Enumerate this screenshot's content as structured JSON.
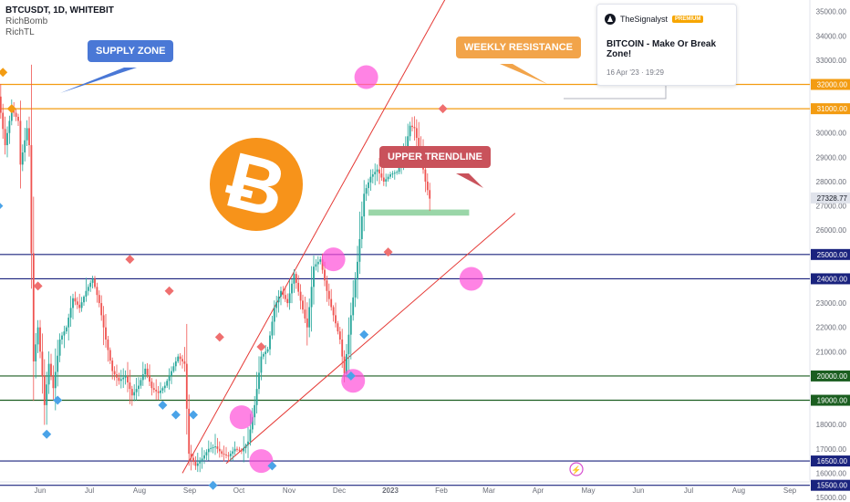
{
  "header": {
    "symbol": "BTCUSDT, 1D, WHITEBIT",
    "indicators": [
      "RichBomb",
      "RichTL"
    ]
  },
  "callouts": {
    "supply": "SUPPLY ZONE",
    "weekly": "WEEKLY RESISTANCE",
    "trend": "UPPER TRENDLINE"
  },
  "idea_card": {
    "author": "TheSignalyst",
    "badge": "PREMIUM",
    "title": "BITCOIN - Make Or Break Zone!",
    "timestamp": "16 Apr '23 · 19:29"
  },
  "colors": {
    "up": "#26a69a",
    "down": "#ef5350",
    "orange_level": "#f39c12",
    "blue_level": "#1a237e",
    "green_level": "#1b5e20",
    "bitcoin_orange": "#f7931a",
    "highlight": "#ff4fd8"
  },
  "chart_data": {
    "type": "candlestick",
    "symbol": "BTCUSDT",
    "timeframe": "1D",
    "exchange": "WHITEBIT",
    "x_ticks": [
      "Jun",
      "Jul",
      "Aug",
      "Sep",
      "Oct",
      "Nov",
      "Dec",
      "2023",
      "Feb",
      "Mar",
      "Apr",
      "May",
      "Jun",
      "Jul",
      "Aug",
      "Sep"
    ],
    "y_ticks": [
      15000,
      16000,
      17000,
      18000,
      19000,
      20000,
      21000,
      22000,
      23000,
      24000,
      25000,
      26000,
      27000,
      28000,
      29000,
      30000,
      31000,
      32000,
      33000,
      34000,
      35000
    ],
    "ylim": [
      14850,
      35250
    ],
    "current_price": "27328.77",
    "levels": [
      {
        "value": 32000,
        "label": "32000.00",
        "color": "orange"
      },
      {
        "value": 31000,
        "label": "31000.00",
        "color": "orange"
      },
      {
        "value": 25000,
        "label": "25000.00",
        "color": "navy"
      },
      {
        "value": 24000,
        "label": "24000.00",
        "color": "navy"
      },
      {
        "value": 20000,
        "label": "20000.00",
        "color": "green"
      },
      {
        "value": 19000,
        "label": "19000.00",
        "color": "green"
      },
      {
        "value": 16500,
        "label": "16500.00",
        "color": "navy"
      },
      {
        "value": 15500,
        "label": "15500.00",
        "color": "navy"
      }
    ],
    "price_path": [
      [
        -3,
        31500
      ],
      [
        0,
        29500
      ],
      [
        3,
        31000
      ],
      [
        6,
        30500
      ],
      [
        7,
        28700
      ],
      [
        10,
        30200
      ],
      [
        11,
        29500
      ],
      [
        13,
        20600
      ],
      [
        15,
        22000
      ],
      [
        17,
        20000
      ],
      [
        18,
        18800
      ],
      [
        20,
        20500
      ],
      [
        22,
        19500
      ],
      [
        25,
        21500
      ],
      [
        28,
        22000
      ],
      [
        31,
        23200
      ],
      [
        34,
        22800
      ],
      [
        37,
        23500
      ],
      [
        40,
        24000
      ],
      [
        43,
        23000
      ],
      [
        46,
        21500
      ],
      [
        49,
        20200
      ],
      [
        52,
        19800
      ],
      [
        55,
        20000
      ],
      [
        58,
        19200
      ],
      [
        61,
        19600
      ],
      [
        64,
        20300
      ],
      [
        67,
        19500
      ],
      [
        70,
        19300
      ],
      [
        73,
        19600
      ],
      [
        76,
        20200
      ],
      [
        79,
        20800
      ],
      [
        82,
        20500
      ],
      [
        84,
        16800
      ],
      [
        87,
        16300
      ],
      [
        90,
        16600
      ],
      [
        93,
        17000
      ],
      [
        96,
        17100
      ],
      [
        99,
        16800
      ],
      [
        102,
        16700
      ],
      [
        105,
        17000
      ],
      [
        108,
        16900
      ],
      [
        111,
        17300
      ],
      [
        114,
        18800
      ],
      [
        117,
        20800
      ],
      [
        120,
        21100
      ],
      [
        123,
        22800
      ],
      [
        126,
        23500
      ],
      [
        129,
        23000
      ],
      [
        132,
        24200
      ],
      [
        135,
        23100
      ],
      [
        138,
        22000
      ],
      [
        141,
        24500
      ],
      [
        144,
        24800
      ],
      [
        147,
        23500
      ],
      [
        150,
        22500
      ],
      [
        153,
        21500
      ],
      [
        155,
        20100
      ],
      [
        158,
        22500
      ],
      [
        161,
        24700
      ],
      [
        164,
        27500
      ],
      [
        167,
        28200
      ],
      [
        170,
        28500
      ],
      [
        173,
        28000
      ],
      [
        176,
        28300
      ],
      [
        179,
        28400
      ],
      [
        182,
        29000
      ],
      [
        185,
        30300
      ],
      [
        187,
        30200
      ],
      [
        190,
        29000
      ],
      [
        192,
        28000
      ],
      [
        194,
        27300
      ]
    ],
    "supply_zone": {
      "from_day": 0,
      "to_day": 12,
      "low": 30000,
      "high": 31600
    },
    "support_box": {
      "from_day": 165,
      "to_day": 211,
      "low": 26600,
      "high": 26850
    },
    "trendlines": [
      {
        "from": [
          100,
          16400
        ],
        "to": [
          232,
          26700
        ],
        "color": "red"
      },
      {
        "from": [
          80,
          16000
        ],
        "to": [
          200,
          35500
        ],
        "color": "red"
      }
    ],
    "highlight_circles": [
      [
        164,
        32300
      ],
      [
        149,
        24800
      ],
      [
        107,
        18300
      ],
      [
        116,
        16500
      ],
      [
        158,
        19800
      ],
      [
        212,
        24000
      ]
    ],
    "signals_sell": [
      [
        -2,
        32500
      ],
      [
        56,
        24800
      ],
      [
        14,
        23700
      ],
      [
        74,
        23500
      ],
      [
        97,
        21600
      ],
      [
        116,
        21200
      ],
      [
        174,
        25100
      ],
      [
        199,
        31000
      ]
    ],
    "signals_buy": [
      [
        -4,
        27000
      ],
      [
        2,
        31000
      ],
      [
        18,
        17600
      ],
      [
        23,
        19000
      ],
      [
        71,
        18800
      ],
      [
        77,
        18400
      ],
      [
        85,
        18400
      ],
      [
        94,
        15500
      ],
      [
        121,
        16300
      ],
      [
        163,
        21700
      ],
      [
        157,
        20000
      ]
    ]
  }
}
